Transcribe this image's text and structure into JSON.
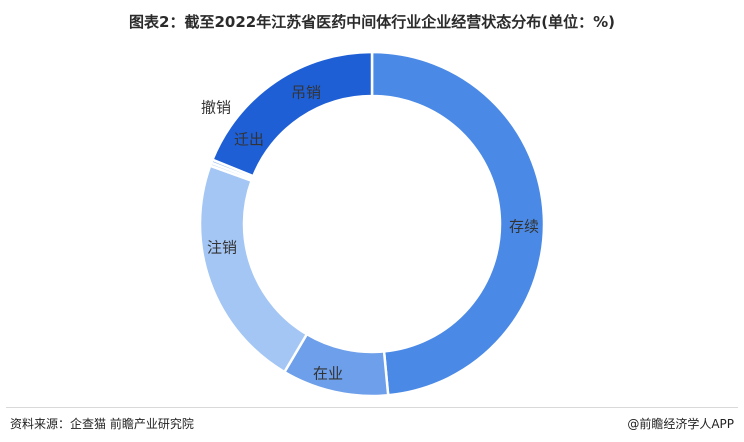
{
  "title": "图表2：截至2022年江苏省医药中间体行业企业经营状态分布(单位：%)",
  "chart_data": {
    "type": "pie",
    "donut": true,
    "slices": [
      {
        "name": "存续",
        "value": 48.5,
        "color": "#4a8ae6"
      },
      {
        "name": "在业",
        "value": 10.0,
        "color": "#6d9fea"
      },
      {
        "name": "注销",
        "value": 22.0,
        "color": "#a4c6f4"
      },
      {
        "name": "迁出",
        "value": 0.3,
        "color": "#c9dcf8"
      },
      {
        "name": "撤销",
        "value": 0.3,
        "color": "#8fb5ee"
      },
      {
        "name": "吊销",
        "value": 18.9,
        "color": "#1f5fd6"
      }
    ],
    "legend": "none"
  },
  "footer": {
    "source": "资料来源：企查猫 前瞻产业研究院",
    "brand": "@前瞻经济学人APP"
  }
}
